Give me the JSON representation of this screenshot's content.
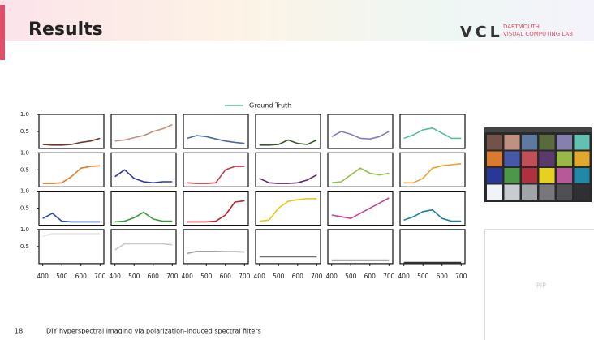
{
  "header": {
    "title": "Results",
    "logo": "VCL",
    "lab_line1": "DARTMOUTH",
    "lab_line2": "VISUAL COMPUTING LAB"
  },
  "chart_data": {
    "type": "line",
    "legend": {
      "label": "Ground Truth",
      "color": "#50c0a0"
    },
    "x": [
      400,
      450,
      500,
      550,
      600,
      650,
      700
    ],
    "xlim": [
      380,
      720
    ],
    "xticks": [
      400,
      500,
      600,
      700
    ],
    "ylim": [
      0,
      1
    ],
    "yticks": [
      {
        "value": 1,
        "label": "1.0"
      },
      0.5
    ],
    "columns": 6,
    "panels": [
      {
        "color": "#6b3a2a",
        "values": [
          0.12,
          0.1,
          0.1,
          0.12,
          0.18,
          0.22,
          0.3
        ]
      },
      {
        "color": "#c4907a",
        "values": [
          0.22,
          0.25,
          0.32,
          0.38,
          0.5,
          0.58,
          0.7
        ]
      },
      {
        "color": "#4a6aa0",
        "values": [
          0.3,
          0.38,
          0.35,
          0.28,
          0.22,
          0.18,
          0.15
        ]
      },
      {
        "color": "#3a5a2a",
        "values": [
          0.1,
          0.1,
          0.12,
          0.25,
          0.15,
          0.12,
          0.25
        ]
      },
      {
        "color": "#8a78c0",
        "values": [
          0.35,
          0.5,
          0.42,
          0.3,
          0.28,
          0.35,
          0.5
        ]
      },
      {
        "color": "#50c0a0",
        "values": [
          0.3,
          0.4,
          0.55,
          0.6,
          0.45,
          0.3,
          0.3
        ]
      },
      {
        "color": "#e07b2a",
        "values": [
          0.1,
          0.1,
          0.12,
          0.3,
          0.55,
          0.6,
          0.62
        ]
      },
      {
        "color": "#2a3a9a",
        "values": [
          0.3,
          0.5,
          0.25,
          0.15,
          0.12,
          0.15,
          0.15
        ]
      },
      {
        "color": "#c83848",
        "values": [
          0.12,
          0.1,
          0.1,
          0.12,
          0.5,
          0.6,
          0.6
        ]
      },
      {
        "color": "#5a2a6a",
        "values": [
          0.25,
          0.12,
          0.1,
          0.1,
          0.12,
          0.2,
          0.35
        ]
      },
      {
        "color": "#90c040",
        "values": [
          0.12,
          0.15,
          0.35,
          0.55,
          0.4,
          0.35,
          0.4
        ]
      },
      {
        "color": "#f0a030",
        "values": [
          0.12,
          0.12,
          0.25,
          0.55,
          0.62,
          0.65,
          0.68
        ]
      },
      {
        "color": "#2a4aa8",
        "values": [
          0.2,
          0.35,
          0.12,
          0.1,
          0.1,
          0.1,
          0.1
        ]
      },
      {
        "color": "#3a9a3a",
        "values": [
          0.1,
          0.12,
          0.22,
          0.38,
          0.18,
          0.12,
          0.12
        ]
      },
      {
        "color": "#c02030",
        "values": [
          0.1,
          0.1,
          0.1,
          0.12,
          0.3,
          0.68,
          0.72
        ]
      },
      {
        "color": "#e8c820",
        "values": [
          0.12,
          0.15,
          0.5,
          0.7,
          0.75,
          0.78,
          0.78
        ]
      },
      {
        "color": "#c04890",
        "values": [
          0.3,
          0.25,
          0.2,
          0.35,
          0.5,
          0.65,
          0.8
        ]
      },
      {
        "color": "#1a80a0",
        "values": [
          0.15,
          0.25,
          0.4,
          0.45,
          0.2,
          0.12,
          0.12
        ]
      },
      {
        "color": "#e4e4e4",
        "values": [
          0.8,
          0.88,
          0.88,
          0.88,
          0.88,
          0.88,
          0.88
        ]
      },
      {
        "color": "#c8c8c8",
        "values": [
          0.4,
          0.58,
          0.58,
          0.58,
          0.58,
          0.58,
          0.55
        ]
      },
      {
        "color": "#a0a0a0",
        "values": [
          0.3,
          0.36,
          0.36,
          0.36,
          0.35,
          0.35,
          0.34
        ]
      },
      {
        "color": "#707070",
        "values": [
          0.2,
          0.2,
          0.2,
          0.2,
          0.2,
          0.2,
          0.2
        ]
      },
      {
        "color": "#505050",
        "values": [
          0.1,
          0.1,
          0.1,
          0.1,
          0.1,
          0.1,
          0.1
        ]
      },
      {
        "color": "#303030",
        "values": [
          0.03,
          0.03,
          0.03,
          0.03,
          0.03,
          0.03,
          0.03
        ]
      }
    ]
  },
  "pip": "PIP",
  "footer": {
    "page": "18",
    "caption": "DIY hyperspectral imaging via polarization-induced spectral filters"
  }
}
